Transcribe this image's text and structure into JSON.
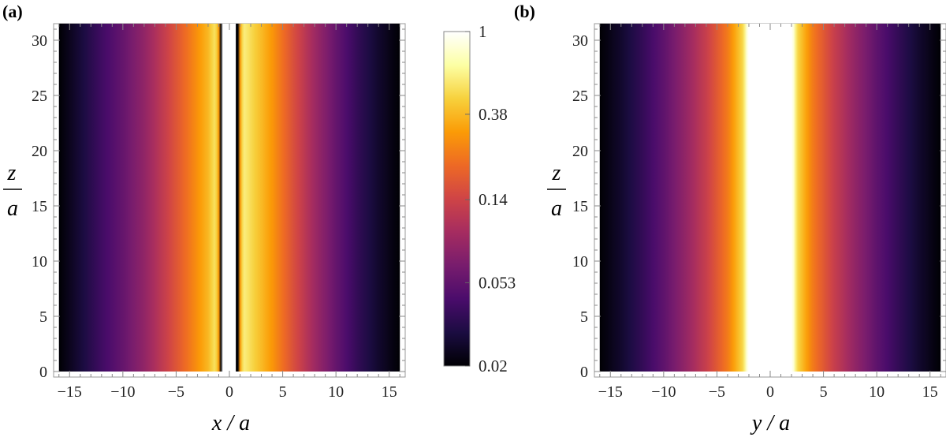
{
  "chart_data": [
    {
      "type": "heatmap",
      "panel": "(a)",
      "xlabel": "x / a",
      "ylabel_num": "z",
      "ylabel_den": "a",
      "xlim": [
        -16.5,
        16.5
      ],
      "ylim": [
        -0.5,
        31.5
      ],
      "xticks": [
        -15,
        -10,
        -5,
        0,
        5,
        10,
        15
      ],
      "xtick_labels": [
        "−15",
        "−10",
        "−5",
        "0",
        "5",
        "10",
        "15"
      ],
      "yticks": [
        0,
        5,
        10,
        15,
        20,
        25,
        30
      ],
      "ytick_labels": [
        "0",
        "5",
        "10",
        "15",
        "20",
        "25",
        "30"
      ],
      "field_x_range": [
        -16,
        16
      ],
      "field_y_range": [
        0,
        31.5
      ],
      "profile_x": [
        -16,
        -14,
        -12,
        -10,
        -8,
        -6,
        -4,
        -2,
        -1.3,
        -1.0,
        -0.8,
        0.8,
        1.0,
        1.3,
        2,
        4,
        6,
        8,
        10,
        12,
        14,
        16
      ],
      "profile_value": [
        0.02,
        0.028,
        0.04,
        0.055,
        0.08,
        0.13,
        0.22,
        0.38,
        0.55,
        0.3,
        0.02,
        0.02,
        0.3,
        0.6,
        0.5,
        0.3,
        0.16,
        0.09,
        0.055,
        0.036,
        0.026,
        0.02
      ],
      "gap_color": "#ffffff",
      "gap_x": [
        -0.6,
        0.6
      ]
    },
    {
      "type": "heatmap",
      "panel": "(b)",
      "xlabel": "y / a",
      "ylabel_num": "z",
      "ylabel_den": "a",
      "xlim": [
        -16.5,
        16.5
      ],
      "ylim": [
        -0.5,
        31.5
      ],
      "xticks": [
        -15,
        -10,
        -5,
        0,
        5,
        10,
        15
      ],
      "xtick_labels": [
        "−15",
        "−10",
        "−5",
        "0",
        "5",
        "10",
        "15"
      ],
      "yticks": [
        0,
        5,
        10,
        15,
        20,
        25,
        30
      ],
      "ytick_labels": [
        "0",
        "5",
        "10",
        "15",
        "20",
        "25",
        "30"
      ],
      "field_x_range": [
        -16,
        16
      ],
      "field_y_range": [
        0,
        31.5
      ],
      "profile_x": [
        -16,
        -14,
        -12,
        -10,
        -8,
        -6,
        -4,
        -2.5,
        -2.1,
        2.1,
        2.5,
        4,
        6,
        8,
        10,
        12,
        14,
        16
      ],
      "profile_value": [
        0.02,
        0.026,
        0.036,
        0.052,
        0.08,
        0.13,
        0.24,
        0.5,
        1,
        1,
        0.5,
        0.24,
        0.13,
        0.08,
        0.052,
        0.036,
        0.026,
        0.02
      ]
    }
  ],
  "colorbar": {
    "scale": "log",
    "min": 0.02,
    "max": 1,
    "ticks": [
      1,
      0.38,
      0.14,
      0.053,
      0.02
    ],
    "tick_labels": [
      "1",
      "0.38",
      "0.14",
      "0.053",
      "0.02"
    ],
    "colormap": [
      "#000004",
      "#1b0c41",
      "#4a0c6b",
      "#781c6d",
      "#a52c60",
      "#cf4446",
      "#ed6925",
      "#fb9b06",
      "#f7d13d",
      "#fcffa4",
      "#ffffff"
    ]
  },
  "colors": {
    "frame": "#999999",
    "tick": "#777777"
  }
}
